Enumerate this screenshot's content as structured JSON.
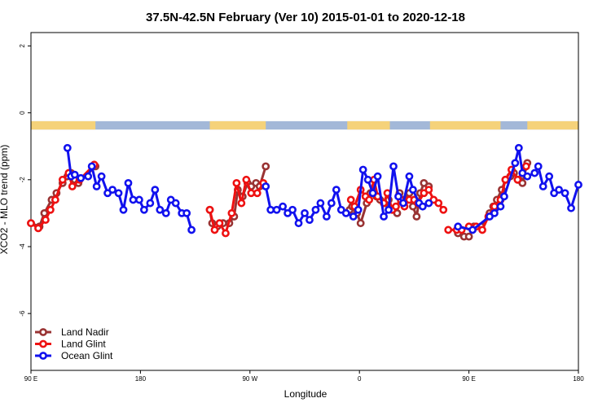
{
  "chart_data": {
    "type": "line",
    "title": "37.5N-42.5N February (Ver 10)   2015-01-01 to 2020-12-18",
    "xlabel": "Longitude",
    "ylabel": "XCO2 - MLO trend (ppm)",
    "xlim": [
      90,
      540
    ],
    "ylim": [
      -7.7,
      2.4
    ],
    "x_ticks": [
      {
        "value": 90,
        "label": "90 E"
      },
      {
        "value": 180,
        "label": "180"
      },
      {
        "value": 270,
        "label": "90 W"
      },
      {
        "value": 360,
        "label": "0"
      },
      {
        "value": 450,
        "label": "90 E"
      },
      {
        "value": 540,
        "label": "180"
      }
    ],
    "y_ticks": [
      {
        "value": 2,
        "label": "2"
      },
      {
        "value": 0,
        "label": "0"
      },
      {
        "value": -2,
        "label": "-2"
      },
      {
        "value": -4,
        "label": "-4"
      },
      {
        "value": -6,
        "label": "-6"
      }
    ],
    "grid": false,
    "legend_position": "bottom-left",
    "land_band": {
      "y_top": -0.25,
      "y_bottom": -0.5,
      "ocean_color": "#a3b8d8",
      "land_color": "#f5d27a",
      "land_segments": [
        [
          90,
          143
        ],
        [
          237,
          283
        ],
        [
          350,
          385
        ],
        [
          418,
          476
        ],
        [
          498,
          548
        ]
      ]
    },
    "series": [
      {
        "name": "Land Nadir",
        "color": "#993333",
        "segments": [
          [
            [
              90,
              -3.3
            ],
            [
              97,
              -3.4
            ],
            [
              101,
              -3.0
            ],
            [
              107,
              -2.6
            ],
            [
              111,
              -2.4
            ],
            [
              116,
              -2.1
            ],
            [
              120,
              -1.9
            ],
            [
              123,
              -1.8
            ],
            [
              126,
              -2.0
            ],
            [
              129,
              -2.1
            ],
            [
              143,
              -1.6
            ]
          ],
          [
            [
              237,
              -2.9
            ],
            [
              239,
              -3.3
            ],
            [
              243,
              -3.4
            ],
            [
              248,
              -3.3
            ],
            [
              253,
              -3.3
            ],
            [
              257,
              -3.1
            ],
            [
              260,
              -2.3
            ],
            [
              264,
              -2.5
            ],
            [
              268,
              -2.1
            ],
            [
              271,
              -2.2
            ],
            [
              275,
              -2.1
            ],
            [
              278,
              -2.2
            ],
            [
              283,
              -1.6
            ]
          ],
          [
            [
              352,
              -2.9
            ],
            [
              354,
              -2.8
            ],
            [
              358,
              -3.0
            ],
            [
              361,
              -3.3
            ],
            [
              366,
              -2.7
            ],
            [
              369,
              -2.4
            ],
            [
              374,
              -2.5
            ],
            [
              377,
              -2.6
            ],
            [
              381,
              -2.7
            ],
            [
              384,
              -2.6
            ],
            [
              387,
              -2.9
            ],
            [
              391,
              -3.0
            ],
            [
              393,
              -2.4
            ],
            [
              396,
              -2.6
            ],
            [
              401,
              -2.4
            ],
            [
              404,
              -2.8
            ],
            [
              407,
              -3.1
            ],
            [
              410,
              -2.4
            ],
            [
              413,
              -2.1
            ],
            [
              417,
              -2.2
            ]
          ],
          [
            [
              441,
              -3.6
            ],
            [
              446,
              -3.7
            ],
            [
              450,
              -3.7
            ],
            [
              454,
              -3.4
            ],
            [
              460,
              -3.4
            ],
            [
              467,
              -3.0
            ],
            [
              470,
              -2.8
            ],
            [
              473,
              -2.6
            ],
            [
              477,
              -2.3
            ],
            [
              480,
              -2.0
            ],
            [
              484,
              -1.9
            ],
            [
              487,
              -1.8
            ],
            [
              491,
              -2.0
            ],
            [
              494,
              -2.1
            ],
            [
              498,
              -1.5
            ]
          ]
        ]
      },
      {
        "name": "Land Glint",
        "color": "#ee1111",
        "segments": [
          [
            [
              90,
              -3.3
            ],
            [
              96,
              -3.45
            ],
            [
              102,
              -3.2
            ],
            [
              106,
              -2.9
            ],
            [
              110,
              -2.6
            ],
            [
              116,
              -2.0
            ],
            [
              121,
              -1.8
            ],
            [
              124,
              -2.2
            ],
            [
              130,
              -2.0
            ],
            [
              142,
              -1.55
            ]
          ],
          [
            [
              237,
              -2.9
            ],
            [
              241,
              -3.5
            ],
            [
              245,
              -3.3
            ],
            [
              250,
              -3.6
            ],
            [
              255,
              -3.0
            ],
            [
              259,
              -2.1
            ],
            [
              263,
              -2.7
            ],
            [
              267,
              -2.0
            ],
            [
              271,
              -2.4
            ],
            [
              276,
              -2.4
            ],
            [
              281,
              -2.1
            ]
          ],
          [
            [
              353,
              -2.6
            ],
            [
              356,
              -2.8
            ],
            [
              361,
              -2.3
            ],
            [
              365,
              -2.5
            ],
            [
              368,
              -2.6
            ],
            [
              372,
              -2.0
            ],
            [
              375,
              -2.5
            ],
            [
              380,
              -2.7
            ],
            [
              383,
              -2.4
            ],
            [
              387,
              -2.9
            ],
            [
              390,
              -2.8
            ],
            [
              394,
              -2.6
            ],
            [
              397,
              -2.8
            ],
            [
              401,
              -2.6
            ],
            [
              405,
              -2.6
            ],
            [
              408,
              -2.7
            ],
            [
              413,
              -2.4
            ],
            [
              417,
              -2.3
            ],
            [
              421,
              -2.6
            ],
            [
              425,
              -2.7
            ],
            [
              429,
              -2.9
            ]
          ],
          [
            [
              433,
              -3.5
            ],
            [
              440,
              -3.5
            ],
            [
              444,
              -3.5
            ],
            [
              450,
              -3.4
            ],
            [
              456,
              -3.4
            ],
            [
              461,
              -3.5
            ],
            [
              466,
              -3.1
            ],
            [
              471,
              -2.8
            ],
            [
              476,
              -2.6
            ],
            [
              480,
              -2.0
            ],
            [
              485,
              -1.7
            ],
            [
              490,
              -2.0
            ],
            [
              497,
              -1.6
            ]
          ]
        ]
      },
      {
        "name": "Ocean Glint",
        "color": "#1111ee",
        "segments": [
          [
            [
              120,
              -1.05
            ],
            [
              123,
              -1.9
            ],
            [
              126,
              -1.85
            ],
            [
              131,
              -1.95
            ],
            [
              137,
              -1.9
            ],
            [
              140,
              -1.6
            ],
            [
              144,
              -2.2
            ],
            [
              148,
              -1.9
            ],
            [
              153,
              -2.4
            ],
            [
              157,
              -2.3
            ],
            [
              162,
              -2.4
            ],
            [
              166,
              -2.9
            ],
            [
              170,
              -2.1
            ],
            [
              174,
              -2.6
            ],
            [
              179,
              -2.6
            ],
            [
              183,
              -2.9
            ],
            [
              188,
              -2.7
            ],
            [
              192,
              -2.3
            ],
            [
              196,
              -2.9
            ],
            [
              201,
              -3.0
            ],
            [
              205,
              -2.6
            ],
            [
              209,
              -2.7
            ],
            [
              214,
              -3.0
            ],
            [
              218,
              -3.0
            ],
            [
              222,
              -3.5
            ]
          ],
          [
            [
              283,
              -2.2
            ],
            [
              287,
              -2.9
            ],
            [
              292,
              -2.9
            ],
            [
              297,
              -2.8
            ],
            [
              301,
              -3.0
            ],
            [
              305,
              -2.9
            ],
            [
              310,
              -3.3
            ],
            [
              315,
              -3.0
            ],
            [
              319,
              -3.2
            ],
            [
              324,
              -2.9
            ],
            [
              328,
              -2.7
            ],
            [
              333,
              -3.1
            ],
            [
              337,
              -2.7
            ],
            [
              341,
              -2.3
            ],
            [
              345,
              -2.9
            ],
            [
              349,
              -3.0
            ],
            [
              355,
              -3.1
            ],
            [
              359,
              -2.9
            ],
            [
              363,
              -1.7
            ],
            [
              367,
              -2.0
            ],
            [
              371,
              -2.4
            ],
            [
              375,
              -1.9
            ],
            [
              380,
              -3.1
            ],
            [
              384,
              -2.9
            ],
            [
              388,
              -1.6
            ],
            [
              392,
              -2.5
            ],
            [
              396,
              -2.7
            ],
            [
              401,
              -1.9
            ],
            [
              404,
              -2.3
            ],
            [
              409,
              -2.7
            ],
            [
              412,
              -2.8
            ],
            [
              417,
              -2.7
            ]
          ],
          [
            [
              441,
              -3.4
            ],
            [
              453,
              -3.5
            ],
            [
              467,
              -3.1
            ],
            [
              471,
              -3.0
            ],
            [
              476,
              -2.8
            ],
            [
              479,
              -2.5
            ],
            [
              488,
              -1.5
            ],
            [
              491,
              -1.05
            ],
            [
              494,
              -1.8
            ],
            [
              498,
              -1.9
            ],
            [
              504,
              -1.8
            ],
            [
              507,
              -1.6
            ],
            [
              511,
              -2.2
            ],
            [
              516,
              -1.9
            ],
            [
              520,
              -2.4
            ],
            [
              524,
              -2.3
            ],
            [
              529,
              -2.4
            ],
            [
              534,
              -2.85
            ],
            [
              540,
              -2.15
            ]
          ]
        ]
      }
    ]
  }
}
